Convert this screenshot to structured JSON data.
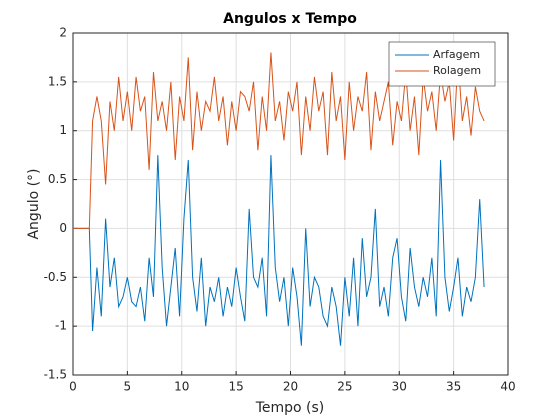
{
  "chart_data": {
    "type": "line",
    "title": "Angulos x Tempo",
    "xlabel": "Tempo (s)",
    "ylabel": "Angulo (°)",
    "x": [
      0,
      1.5,
      1.8,
      2.2,
      2.6,
      3,
      3.4,
      3.8,
      4.2,
      4.6,
      5,
      5.4,
      5.8,
      6.2,
      6.6,
      7,
      7.4,
      7.8,
      8.2,
      8.6,
      9,
      9.4,
      9.8,
      10.2,
      10.6,
      11,
      11.4,
      11.8,
      12.2,
      12.6,
      13,
      13.4,
      13.8,
      14.2,
      14.6,
      15,
      15.4,
      15.8,
      16.2,
      16.6,
      17,
      17.4,
      17.8,
      18.2,
      18.6,
      19,
      19.4,
      19.8,
      20.2,
      20.6,
      21,
      21.4,
      21.8,
      22.2,
      22.6,
      23,
      23.4,
      23.8,
      24.2,
      24.6,
      25,
      25.4,
      25.8,
      26.2,
      26.6,
      27,
      27.4,
      27.8,
      28.2,
      28.6,
      29,
      29.4,
      29.8,
      30.2,
      30.6,
      31,
      31.4,
      31.8,
      32.2,
      32.6,
      33,
      33.4,
      33.8,
      34.2,
      34.6,
      35,
      35.4,
      35.8,
      36.2,
      36.6,
      37,
      37.4,
      37.8
    ],
    "series": [
      {
        "name": "Arfagem",
        "color": "#0072bd",
        "values": [
          0,
          0,
          -1.05,
          -0.4,
          -0.9,
          0.1,
          -0.6,
          -0.3,
          -0.8,
          -0.7,
          -0.5,
          -0.75,
          -0.8,
          -0.6,
          -0.95,
          -0.3,
          -0.7,
          0.75,
          -0.4,
          -1.0,
          -0.6,
          -0.2,
          -0.9,
          0.1,
          0.7,
          -0.5,
          -0.85,
          -0.3,
          -1.0,
          -0.6,
          -0.75,
          -0.5,
          -0.9,
          -0.6,
          -0.8,
          -0.4,
          -0.7,
          -0.95,
          0.2,
          -0.5,
          -0.6,
          -0.3,
          -0.9,
          0.75,
          -0.4,
          -0.75,
          -0.5,
          -1.0,
          -0.4,
          -0.7,
          -1.2,
          0.0,
          -0.8,
          -0.5,
          -0.6,
          -0.9,
          -1.0,
          -0.6,
          -0.8,
          -1.2,
          -0.5,
          -0.9,
          -0.3,
          -1.0,
          -0.1,
          -0.7,
          -0.5,
          0.2,
          -0.8,
          -0.6,
          -0.9,
          -0.3,
          -0.1,
          -0.7,
          -0.95,
          -0.2,
          -0.6,
          -0.8,
          -0.5,
          -0.7,
          -0.3,
          -0.9,
          0.7,
          -0.5,
          -0.85,
          -0.6,
          -0.3,
          -0.9,
          -0.6,
          -0.75,
          -0.5,
          0.3,
          -0.6
        ]
      },
      {
        "name": "Rolagem",
        "color": "#d95319",
        "values": [
          0,
          0,
          1.1,
          1.35,
          1.1,
          0.45,
          1.3,
          1.0,
          1.55,
          1.1,
          1.4,
          1.0,
          1.55,
          1.2,
          1.35,
          0.6,
          1.6,
          1.1,
          1.3,
          1.0,
          1.5,
          0.7,
          1.35,
          1.1,
          1.75,
          0.8,
          1.4,
          1.0,
          1.3,
          1.2,
          1.55,
          1.1,
          1.35,
          0.85,
          1.3,
          1.0,
          1.4,
          1.35,
          1.2,
          1.5,
          0.8,
          1.35,
          1.0,
          1.8,
          1.1,
          1.3,
          0.9,
          1.4,
          1.2,
          1.5,
          0.75,
          1.35,
          1.0,
          1.55,
          1.2,
          1.4,
          0.75,
          1.6,
          1.1,
          1.35,
          0.7,
          1.5,
          1.0,
          1.35,
          1.2,
          1.6,
          0.8,
          1.4,
          1.1,
          1.3,
          1.5,
          0.85,
          1.3,
          1.1,
          1.6,
          1.0,
          1.35,
          0.75,
          1.55,
          1.2,
          1.4,
          1.0,
          1.6,
          1.3,
          1.5,
          0.9,
          1.75,
          1.1,
          1.35,
          0.95,
          1.45,
          1.2,
          1.1
        ]
      }
    ],
    "xlim": [
      0,
      40
    ],
    "xticks": [
      0,
      5,
      10,
      15,
      20,
      25,
      30,
      35,
      40
    ],
    "ylim": [
      -1.5,
      2
    ],
    "yticks": [
      -1.5,
      -1,
      -0.5,
      0,
      0.5,
      1,
      1.5,
      2
    ],
    "grid": true,
    "legend": "northeast"
  }
}
